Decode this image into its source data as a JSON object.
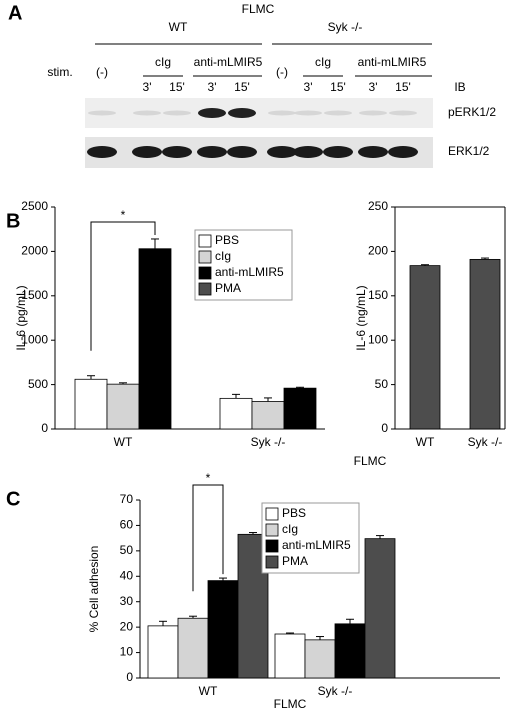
{
  "panel_labels": [
    "A",
    "B",
    "C"
  ],
  "panel_a": {
    "title": "FLMC",
    "stim_label": "stim.",
    "ib_label": "IB",
    "groups": [
      {
        "name": "WT",
        "treatments": [
          "(-)",
          "cIg",
          "anti-mLMIR5"
        ],
        "times": [
          "3'",
          "15'",
          "3'",
          "15'"
        ]
      },
      {
        "name": "Syk -/-",
        "treatments": [
          "(-)",
          "cIg",
          "anti-mLMIR5"
        ],
        "times": [
          "3'",
          "15'",
          "3'",
          "15'"
        ]
      }
    ],
    "blots": [
      "pERK1/2",
      "ERK1/2"
    ]
  },
  "chart_data": [
    {
      "type": "bar",
      "ylabel": "IL-6 (pg/mL)",
      "xlabel": "FLMC",
      "annotation": "*",
      "categories": [
        "WT",
        "Syk -/-"
      ],
      "ylim": [
        0,
        2500
      ],
      "yticks": [
        0,
        500,
        1000,
        1500,
        2000,
        2500
      ],
      "legend": true,
      "frame": false,
      "series": [
        {
          "name": "PBS",
          "color": "#ffffff",
          "values": [
            560,
            345
          ],
          "errors": [
            40,
            45
          ]
        },
        {
          "name": "cIg",
          "color": "#d4d4d4",
          "values": [
            505,
            310
          ],
          "errors": [
            15,
            40
          ]
        },
        {
          "name": "anti-mLMIR5",
          "color": "#000000",
          "values": [
            2030,
            460
          ],
          "errors": [
            110,
            10
          ]
        },
        {
          "name": "PMA",
          "color": "#4d4d4d",
          "values": [
            null,
            null
          ],
          "errors": [
            null,
            null
          ]
        }
      ]
    },
    {
      "type": "bar",
      "ylabel": "IL-6 (ng/mL)",
      "categories": [
        "WT",
        "Syk -/-"
      ],
      "ylim": [
        0,
        250
      ],
      "yticks": [
        0,
        50,
        100,
        150,
        200,
        250
      ],
      "legend": false,
      "frame": true,
      "series": [
        {
          "name": "PMA",
          "color": "#4d4d4d",
          "values": [
            184,
            191
          ],
          "errors": [
            1,
            1.5
          ]
        }
      ]
    },
    {
      "type": "bar",
      "ylabel": "% Cell adhesion",
      "xlabel": "FLMC",
      "annotation": "*",
      "categories": [
        "WT",
        "Syk -/-"
      ],
      "ylim": [
        0,
        70
      ],
      "yticks": [
        0,
        10,
        20,
        30,
        40,
        50,
        60,
        70
      ],
      "legend": true,
      "frame": false,
      "series": [
        {
          "name": "PBS",
          "color": "#ffffff",
          "values": [
            20.5,
            17.3
          ],
          "errors": [
            1.8,
            0.4
          ]
        },
        {
          "name": "cIg",
          "color": "#d4d4d4",
          "values": [
            23.5,
            15
          ],
          "errors": [
            0.8,
            1.3
          ]
        },
        {
          "name": "anti-mLMIR5",
          "color": "#000000",
          "values": [
            38.3,
            21.3
          ],
          "errors": [
            1,
            1.8
          ]
        },
        {
          "name": "PMA",
          "color": "#4d4d4d",
          "values": [
            56.5,
            54.8
          ],
          "errors": [
            0.7,
            1.2
          ]
        }
      ]
    }
  ]
}
